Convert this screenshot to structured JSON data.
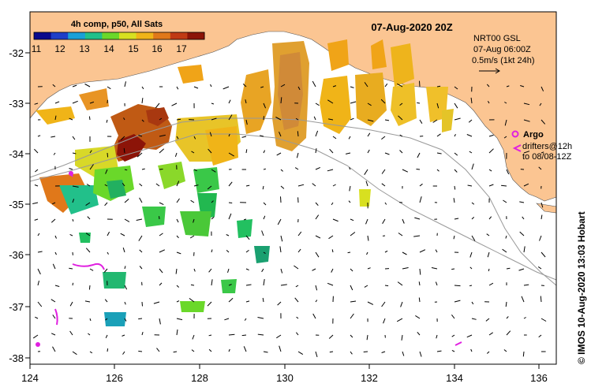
{
  "colorbar": {
    "title": "4h comp, p50, All Sats",
    "ticks": [
      "11",
      "12",
      "13",
      "14",
      "15",
      "16",
      "17"
    ],
    "colors": [
      "#0a0a8c",
      "#1f3fc8",
      "#1aa0d8",
      "#22c08a",
      "#6ad82a",
      "#d8e020",
      "#f0b418",
      "#e0781a",
      "#c03a14",
      "#8c1408"
    ]
  },
  "title": "07-Aug-2020 20Z",
  "current_info": {
    "line1": "NRT00 GSL",
    "line2": "07-Aug 06:00Z",
    "line3": "0.5m/s (1kt 24h)"
  },
  "argo_legend": {
    "label": "Argo",
    "line2": "drifters@12h",
    "line3": "to 08/08-12Z",
    "argo_color": "#e020e0"
  },
  "credit": "© IMOS 10-Aug-2020 13:03 Hobart",
  "axes": {
    "x_ticks": [
      "124",
      "126",
      "128",
      "130",
      "132",
      "134",
      "136"
    ],
    "y_ticks": [
      "-32",
      "-33",
      "-34",
      "-35",
      "-36",
      "-37",
      "-38"
    ]
  },
  "colors": {
    "land": "#fbc592",
    "ocean": "#ffffff"
  }
}
